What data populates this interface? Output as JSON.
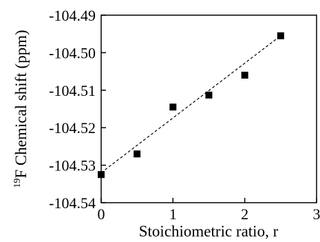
{
  "chart_data": {
    "type": "scatter",
    "xlabel": "Stoichiometric ratio, r",
    "ylabel_superscript": "19",
    "ylabel": "F Chemical shift (ppm)",
    "xlim": [
      0,
      3
    ],
    "ylim": [
      -104.54,
      -104.49
    ],
    "x_ticks": [
      0,
      1,
      2,
      3
    ],
    "x_tick_labels": [
      "0",
      "1",
      "2",
      "3"
    ],
    "y_ticks": [
      -104.49,
      -104.5,
      -104.51,
      -104.52,
      -104.53,
      -104.54
    ],
    "y_tick_labels": [
      "-104.49",
      "-104.50",
      "-104.51",
      "-104.52",
      "-104.53",
      "-104.54"
    ],
    "grid": false,
    "legend": "none",
    "series": [
      {
        "marker": "square",
        "color": "#000000",
        "x": [
          0,
          0.5,
          1,
          1.5,
          2,
          2.5
        ],
        "y": [
          -104.5325,
          -104.527,
          -104.5145,
          -104.5113,
          -104.506,
          -104.4955
        ]
      }
    ],
    "fit_line": {
      "style": "dashed",
      "color": "#000000",
      "x": [
        0,
        2.5
      ],
      "y": [
        -104.532,
        -104.4955
      ]
    }
  }
}
